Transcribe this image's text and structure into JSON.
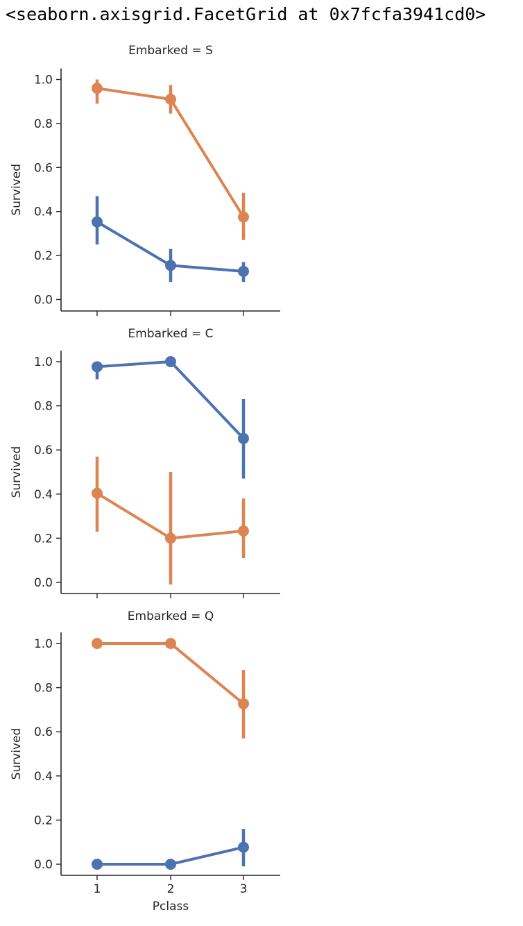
{
  "output_repr": "<seaborn.axisgrid.FacetGrid at 0x7fcfa3941cd0>",
  "chart_data": {
    "type": "line",
    "xlabel": "Pclass",
    "ylabel": "Survived",
    "ylim": [
      -0.05,
      1.05
    ],
    "x_categories": [
      "1",
      "2",
      "3"
    ],
    "yticks": [
      "0.0",
      "0.2",
      "0.4",
      "0.6",
      "0.8",
      "1.0"
    ],
    "colors": {
      "blue": "#4c72b0",
      "orange": "#dd8452",
      "axis": "#262626"
    },
    "panels": [
      {
        "title": "Embarked = S",
        "series": [
          {
            "color_key": "orange",
            "values": [
              0.96,
              0.91,
              0.375
            ],
            "ci_low": [
              0.89,
              0.845,
              0.27
            ],
            "ci_high": [
              1.0,
              0.975,
              0.485
            ]
          },
          {
            "color_key": "blue",
            "values": [
              0.353,
              0.155,
              0.128
            ],
            "ci_low": [
              0.25,
              0.08,
              0.08
            ],
            "ci_high": [
              0.47,
              0.23,
              0.17
            ]
          }
        ]
      },
      {
        "title": "Embarked = C",
        "series": [
          {
            "color_key": "blue",
            "values": [
              0.977,
              1.0,
              0.652
            ],
            "ci_low": [
              0.92,
              1.0,
              0.47
            ],
            "ci_high": [
              1.0,
              1.0,
              0.83
            ]
          },
          {
            "color_key": "orange",
            "values": [
              0.404,
              0.2,
              0.233
            ],
            "ci_low": [
              0.23,
              -0.01,
              0.11
            ],
            "ci_high": [
              0.57,
              0.5,
              0.38
            ]
          }
        ]
      },
      {
        "title": "Embarked = Q",
        "series": [
          {
            "color_key": "orange",
            "values": [
              1.0,
              1.0,
              0.727
            ],
            "ci_low": [
              1.0,
              1.0,
              0.57
            ],
            "ci_high": [
              1.0,
              1.0,
              0.88
            ]
          },
          {
            "color_key": "blue",
            "values": [
              0.0,
              0.0,
              0.077
            ],
            "ci_low": [
              0.0,
              0.0,
              -0.01
            ],
            "ci_high": [
              0.0,
              0.0,
              0.16
            ]
          }
        ]
      }
    ]
  }
}
